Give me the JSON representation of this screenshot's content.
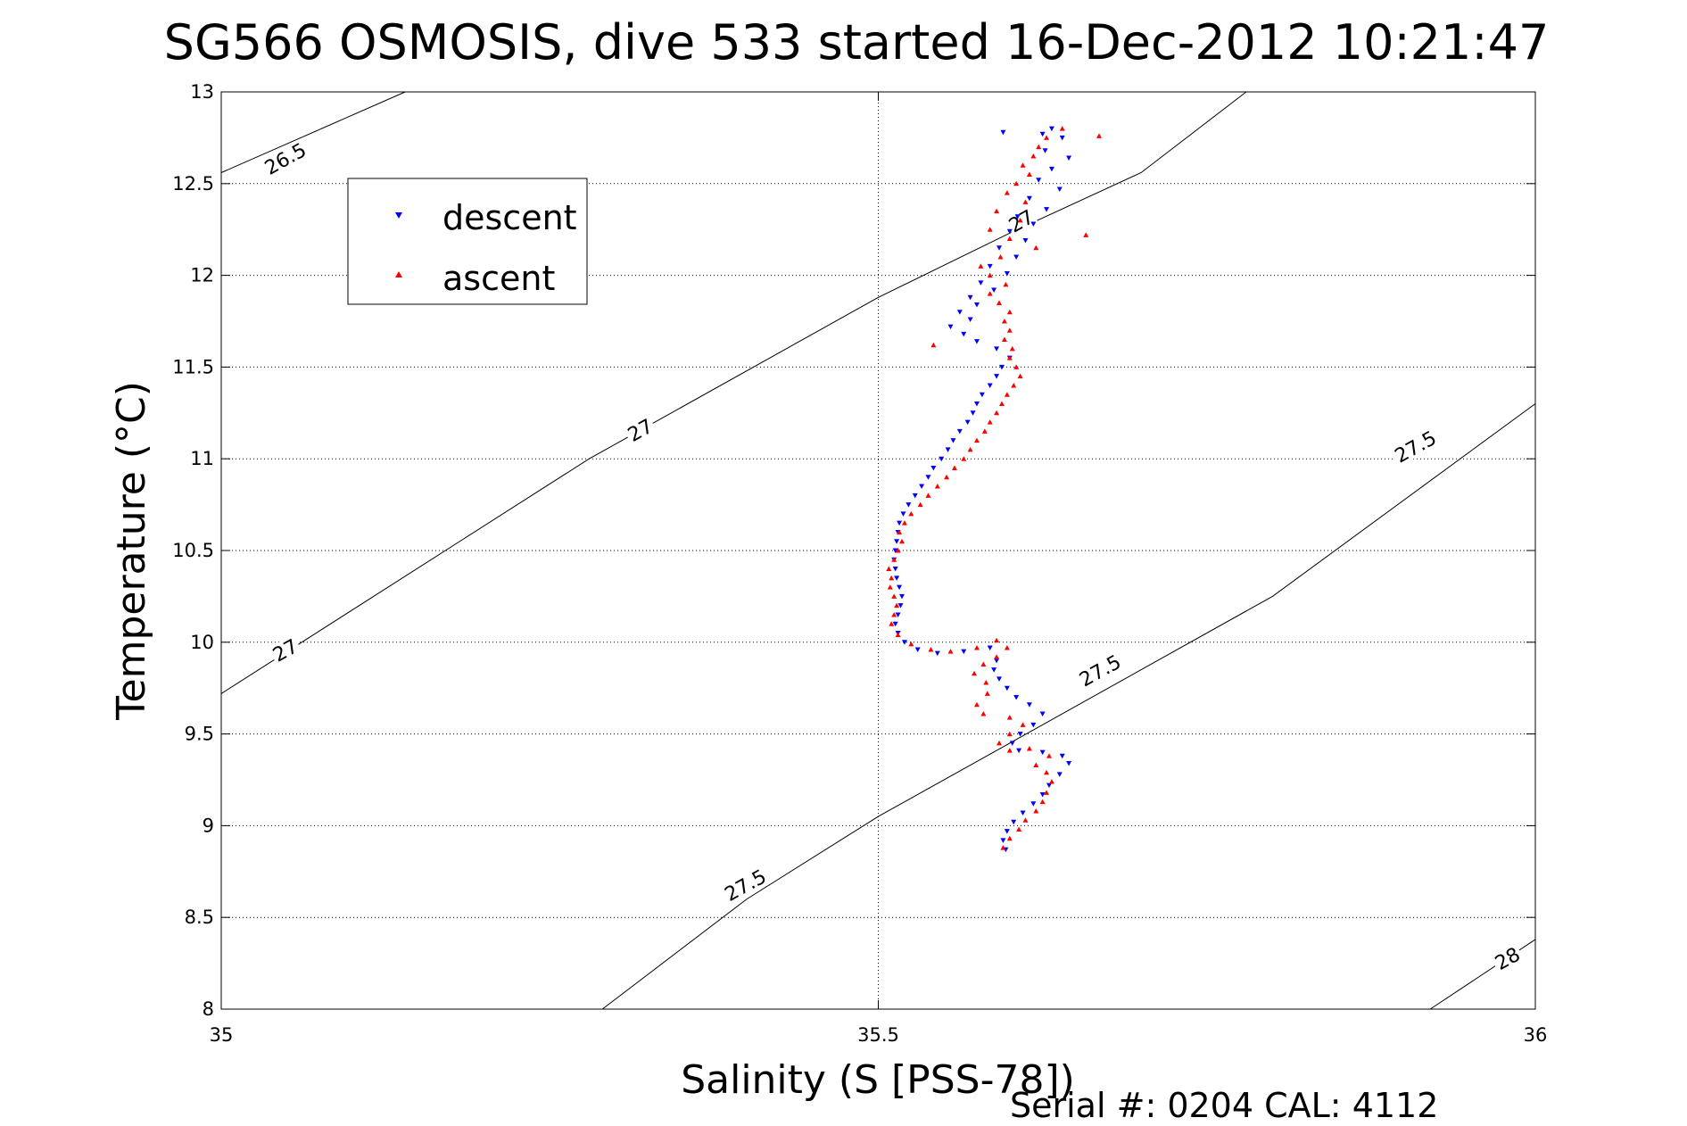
{
  "chart_data": {
    "type": "scatter",
    "title": "SG566 OSMOSIS, dive 533 started 16-Dec-2012 10:21:47",
    "xlabel": "Salinity (S [PSS-78])",
    "ylabel": "Temperature (°C)",
    "xlim": [
      35,
      36
    ],
    "ylim": [
      8,
      13
    ],
    "xticks": [
      "35",
      "35.5",
      "36"
    ],
    "yticks": [
      "8",
      "8.5",
      "9",
      "9.5",
      "10",
      "10.5",
      "11",
      "11.5",
      "12",
      "12.5",
      "13"
    ],
    "grid": "dotted",
    "legend_position": "top-left",
    "footer": "Serial #: 0204  CAL: 4112",
    "isopycnals": [
      {
        "sigma": 26.5,
        "label": "26.5",
        "points": [
          [
            35.0,
            12.56
          ],
          [
            35.14,
            13.0
          ]
        ]
      },
      {
        "sigma": 27.0,
        "label": "27",
        "points": [
          [
            35.0,
            9.72
          ],
          [
            35.28,
            11.0
          ],
          [
            35.5,
            11.88
          ],
          [
            35.6,
            12.23
          ],
          [
            35.7,
            12.56
          ],
          [
            35.78,
            13.0
          ]
        ]
      },
      {
        "sigma": 27.5,
        "label": "27.5",
        "points": [
          [
            35.29,
            8.0
          ],
          [
            35.4,
            8.6
          ],
          [
            35.5,
            9.05
          ],
          [
            35.6,
            9.45
          ],
          [
            35.8,
            10.25
          ],
          [
            36.0,
            11.3
          ]
        ]
      },
      {
        "sigma": 28.0,
        "label": "28",
        "points": [
          [
            35.92,
            8.0
          ],
          [
            36.0,
            8.38
          ]
        ]
      }
    ],
    "isopycnal_labels": [
      {
        "text": "26.5",
        "s": 35.05,
        "t": 12.62
      },
      {
        "text": "27",
        "s": 35.32,
        "t": 11.14
      },
      {
        "text": "27",
        "s": 35.05,
        "t": 9.94
      },
      {
        "text": "27",
        "s": 35.61,
        "t": 12.28
      },
      {
        "text": "27.5",
        "s": 35.91,
        "t": 11.05
      },
      {
        "text": "27.5",
        "s": 35.67,
        "t": 9.83
      },
      {
        "text": "27.5",
        "s": 35.4,
        "t": 8.66
      },
      {
        "text": "28",
        "s": 35.98,
        "t": 8.26
      }
    ],
    "series": [
      {
        "name": "descent",
        "color": "#0000ff",
        "marker": "triangle-down",
        "points": [
          [
            35.595,
            12.78
          ],
          [
            35.625,
            12.77
          ],
          [
            35.632,
            12.8
          ],
          [
            35.64,
            12.75
          ],
          [
            35.627,
            12.68
          ],
          [
            35.645,
            12.64
          ],
          [
            35.632,
            12.58
          ],
          [
            35.622,
            12.52
          ],
          [
            35.638,
            12.47
          ],
          [
            35.615,
            12.42
          ],
          [
            35.628,
            12.36
          ],
          [
            35.606,
            12.32
          ],
          [
            35.618,
            12.28
          ],
          [
            35.6,
            12.24
          ],
          [
            35.612,
            12.19
          ],
          [
            35.592,
            12.15
          ],
          [
            35.605,
            12.1
          ],
          [
            35.585,
            12.05
          ],
          [
            35.598,
            12.01
          ],
          [
            35.578,
            11.96
          ],
          [
            35.588,
            11.92
          ],
          [
            35.57,
            11.88
          ],
          [
            35.575,
            11.84
          ],
          [
            35.562,
            11.8
          ],
          [
            35.57,
            11.76
          ],
          [
            35.555,
            11.72
          ],
          [
            35.565,
            11.68
          ],
          [
            35.575,
            11.64
          ],
          [
            35.59,
            11.6
          ],
          [
            35.6,
            11.55
          ],
          [
            35.594,
            11.5
          ],
          [
            35.59,
            11.45
          ],
          [
            35.585,
            11.4
          ],
          [
            35.579,
            11.35
          ],
          [
            35.575,
            11.3
          ],
          [
            35.572,
            11.25
          ],
          [
            35.568,
            11.2
          ],
          [
            35.562,
            11.15
          ],
          [
            35.557,
            11.1
          ],
          [
            35.553,
            11.05
          ],
          [
            35.548,
            11.0
          ],
          [
            35.542,
            10.95
          ],
          [
            35.538,
            10.9
          ],
          [
            35.533,
            10.85
          ],
          [
            35.528,
            10.8
          ],
          [
            35.523,
            10.75
          ],
          [
            35.519,
            10.7
          ],
          [
            35.516,
            10.65
          ],
          [
            35.515,
            10.6
          ],
          [
            35.514,
            10.55
          ],
          [
            35.513,
            10.5
          ],
          [
            35.512,
            10.45
          ],
          [
            35.513,
            10.4
          ],
          [
            35.514,
            10.35
          ],
          [
            35.516,
            10.3
          ],
          [
            35.518,
            10.25
          ],
          [
            35.517,
            10.2
          ],
          [
            35.515,
            10.15
          ],
          [
            35.513,
            10.1
          ],
          [
            35.515,
            10.05
          ],
          [
            35.52,
            10.0
          ],
          [
            35.53,
            9.96
          ],
          [
            35.545,
            9.94
          ],
          [
            35.565,
            9.95
          ],
          [
            35.585,
            9.97
          ],
          [
            35.59,
            9.9
          ],
          [
            35.588,
            9.85
          ],
          [
            35.592,
            9.8
          ],
          [
            35.598,
            9.75
          ],
          [
            35.605,
            9.7
          ],
          [
            35.615,
            9.66
          ],
          [
            35.625,
            9.61
          ],
          [
            35.618,
            9.55
          ],
          [
            35.608,
            9.5
          ],
          [
            35.602,
            9.45
          ],
          [
            35.607,
            9.41
          ],
          [
            35.625,
            9.4
          ],
          [
            35.64,
            9.38
          ],
          [
            35.645,
            9.34
          ],
          [
            35.638,
            9.28
          ],
          [
            35.63,
            9.22
          ],
          [
            35.625,
            9.17
          ],
          [
            35.618,
            9.12
          ],
          [
            35.61,
            9.07
          ],
          [
            35.603,
            9.02
          ],
          [
            35.598,
            8.97
          ],
          [
            35.595,
            8.92
          ],
          [
            35.597,
            8.87
          ]
        ]
      },
      {
        "name": "ascent",
        "color": "#ff0000",
        "marker": "triangle-up",
        "points": [
          [
            35.595,
            8.88
          ],
          [
            35.6,
            8.93
          ],
          [
            35.607,
            8.98
          ],
          [
            35.612,
            9.03
          ],
          [
            35.62,
            9.08
          ],
          [
            35.625,
            9.13
          ],
          [
            35.628,
            9.18
          ],
          [
            35.632,
            9.24
          ],
          [
            35.628,
            9.29
          ],
          [
            35.62,
            9.33
          ],
          [
            35.63,
            9.38
          ],
          [
            35.615,
            9.42
          ],
          [
            35.6,
            9.41
          ],
          [
            35.592,
            9.45
          ],
          [
            35.6,
            9.5
          ],
          [
            35.61,
            9.55
          ],
          [
            35.6,
            9.59
          ],
          [
            35.58,
            9.61
          ],
          [
            35.575,
            9.66
          ],
          [
            35.583,
            9.72
          ],
          [
            35.582,
            9.78
          ],
          [
            35.573,
            9.83
          ],
          [
            35.58,
            9.88
          ],
          [
            35.59,
            9.92
          ],
          [
            35.598,
            9.97
          ],
          [
            35.59,
            10.01
          ],
          [
            35.575,
            9.97
          ],
          [
            35.555,
            9.95
          ],
          [
            35.54,
            9.96
          ],
          [
            35.525,
            9.99
          ],
          [
            35.515,
            10.04
          ],
          [
            35.51,
            10.1
          ],
          [
            35.512,
            10.15
          ],
          [
            35.514,
            10.2
          ],
          [
            35.512,
            10.25
          ],
          [
            35.509,
            10.3
          ],
          [
            35.51,
            10.35
          ],
          [
            35.508,
            10.4
          ],
          [
            35.512,
            10.45
          ],
          [
            35.515,
            10.5
          ],
          [
            35.518,
            10.55
          ],
          [
            35.516,
            10.6
          ],
          [
            35.52,
            10.65
          ],
          [
            35.525,
            10.7
          ],
          [
            35.532,
            10.75
          ],
          [
            35.538,
            10.8
          ],
          [
            35.545,
            10.85
          ],
          [
            35.552,
            10.9
          ],
          [
            35.558,
            10.95
          ],
          [
            35.565,
            11.0
          ],
          [
            35.57,
            11.05
          ],
          [
            35.575,
            11.1
          ],
          [
            35.581,
            11.15
          ],
          [
            35.585,
            11.2
          ],
          [
            35.59,
            11.25
          ],
          [
            35.594,
            11.3
          ],
          [
            35.598,
            11.35
          ],
          [
            35.603,
            11.4
          ],
          [
            35.608,
            11.45
          ],
          [
            35.605,
            11.5
          ],
          [
            35.6,
            11.55
          ],
          [
            35.602,
            11.6
          ],
          [
            35.596,
            11.65
          ],
          [
            35.6,
            11.7
          ],
          [
            35.596,
            11.75
          ],
          [
            35.6,
            11.8
          ],
          [
            35.592,
            11.85
          ],
          [
            35.585,
            11.9
          ],
          [
            35.597,
            11.95
          ],
          [
            35.585,
            12.0
          ],
          [
            35.578,
            12.05
          ],
          [
            35.593,
            12.1
          ],
          [
            35.62,
            12.15
          ],
          [
            35.6,
            12.2
          ],
          [
            35.585,
            12.25
          ],
          [
            35.608,
            12.3
          ],
          [
            35.59,
            12.35
          ],
          [
            35.612,
            12.4
          ],
          [
            35.598,
            12.45
          ],
          [
            35.605,
            12.5
          ],
          [
            35.615,
            12.55
          ],
          [
            35.61,
            12.6
          ],
          [
            35.618,
            12.65
          ],
          [
            35.622,
            12.7
          ],
          [
            35.628,
            12.75
          ],
          [
            35.64,
            12.8
          ],
          [
            35.542,
            11.62
          ],
          [
            35.658,
            12.22
          ],
          [
            35.668,
            12.76
          ]
        ]
      }
    ]
  }
}
